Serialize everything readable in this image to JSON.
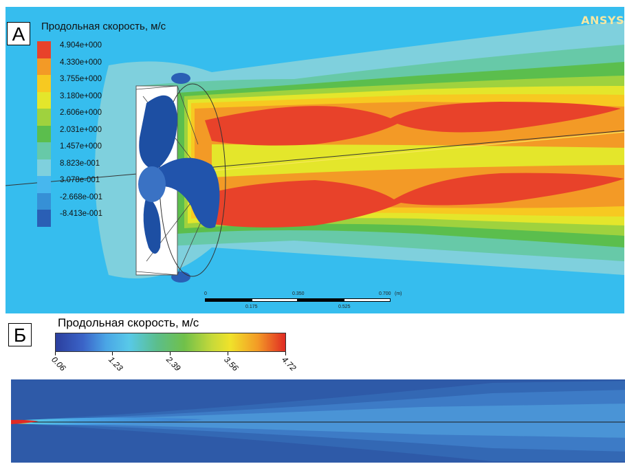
{
  "panel_a": {
    "letter": "А",
    "legend_title": "Продольная скорость, м/с",
    "legend": [
      {
        "label": "4.904e+000",
        "color": "#e8422a"
      },
      {
        "label": "4.330e+000",
        "color": "#f39a26"
      },
      {
        "label": "3.755e+000",
        "color": "#f7c921"
      },
      {
        "label": "3.180e+000",
        "color": "#e4e62b"
      },
      {
        "label": "2.606e+000",
        "color": "#9fd23e"
      },
      {
        "label": "2.031e+000",
        "color": "#5bbe4d"
      },
      {
        "label": "1.457e+000",
        "color": "#67c9a8"
      },
      {
        "label": "8.823e-001",
        "color": "#7fd0dd"
      },
      {
        "label": "3.078e-001",
        "color": "#47b7ee"
      },
      {
        "label": "-2.668e-001",
        "color": "#3690d6"
      },
      {
        "label": "-8.413e-001",
        "color": "#2a5fb5"
      }
    ],
    "logo": "ANSYS",
    "scale_top": [
      "0",
      "0.350",
      "0.700",
      "(m)"
    ],
    "scale_bottom": [
      "0.175",
      "0.525"
    ]
  },
  "panel_b": {
    "letter": "Б",
    "legend_title": "Продольная скорость, м/с",
    "ticks": [
      "0.06",
      "1.23",
      "2.39",
      "3.56",
      "4.72"
    ]
  },
  "colors": {
    "background_flow": "#36bdee",
    "high": "#e8422a",
    "blade": "#1d4fa3",
    "panel_b_bg": "#2e5aa8"
  }
}
